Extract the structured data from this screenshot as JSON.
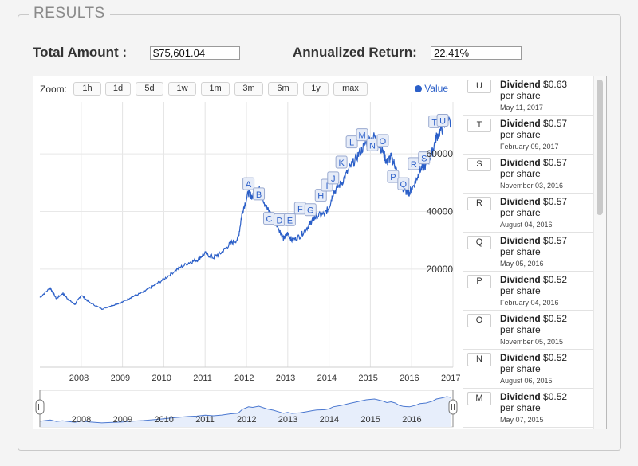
{
  "results": {
    "title": "RESULTS",
    "total_amount_label": "Total Amount :",
    "total_amount_value": "$75,601.04",
    "annualized_return_label": "Annualized Return:",
    "annualized_return_value": "22.41%"
  },
  "zoom": {
    "label": "Zoom:",
    "buttons": [
      "1h",
      "1d",
      "5d",
      "1w",
      "1m",
      "3m",
      "6m",
      "1y",
      "max"
    ]
  },
  "legend": {
    "label": "Value",
    "color": "#2b5fc8"
  },
  "chart_data": {
    "type": "line",
    "x_start": 2007.0,
    "x_end": 2017.0,
    "x_tick_labels": [
      "2008",
      "2009",
      "2010",
      "2011",
      "2012",
      "2013",
      "2014",
      "2015",
      "2016",
      "2017"
    ],
    "y_tick_labels": [
      "20000",
      "40000",
      "60000"
    ],
    "ylim": [
      -14000,
      78000
    ],
    "series": [
      {
        "points": [
          [
            2007.0,
            10200
          ],
          [
            2007.25,
            13500
          ],
          [
            2007.4,
            9800
          ],
          [
            2007.55,
            11600
          ],
          [
            2007.7,
            9400
          ],
          [
            2007.85,
            7800
          ],
          [
            2008.0,
            11000
          ],
          [
            2008.2,
            8500
          ],
          [
            2008.5,
            6200
          ],
          [
            2008.7,
            7200
          ],
          [
            2009.0,
            8600
          ],
          [
            2009.2,
            10200
          ],
          [
            2009.5,
            12000
          ],
          [
            2009.7,
            13800
          ],
          [
            2010.0,
            16500
          ],
          [
            2010.3,
            19800
          ],
          [
            2010.6,
            22200
          ],
          [
            2010.8,
            23200
          ],
          [
            2011.0,
            25500
          ],
          [
            2011.2,
            24000
          ],
          [
            2011.4,
            25800
          ],
          [
            2011.6,
            28800
          ],
          [
            2011.8,
            30500
          ],
          [
            2011.9,
            40000
          ],
          [
            2012.05,
            46500
          ],
          [
            2012.15,
            45000
          ],
          [
            2012.3,
            48000
          ],
          [
            2012.5,
            41000
          ],
          [
            2012.65,
            38000
          ],
          [
            2012.8,
            33500
          ],
          [
            2012.9,
            30500
          ],
          [
            2013.0,
            32500
          ],
          [
            2013.1,
            30000
          ],
          [
            2013.3,
            31500
          ],
          [
            2013.5,
            35000
          ],
          [
            2013.6,
            37000
          ],
          [
            2013.7,
            38500
          ],
          [
            2013.9,
            39200
          ],
          [
            2014.0,
            41500
          ],
          [
            2014.1,
            46500
          ],
          [
            2014.3,
            50000
          ],
          [
            2014.5,
            55000
          ],
          [
            2014.7,
            59500
          ],
          [
            2014.9,
            64000
          ],
          [
            2015.1,
            66000
          ],
          [
            2015.3,
            61000
          ],
          [
            2015.4,
            57000
          ],
          [
            2015.5,
            59000
          ],
          [
            2015.6,
            56000
          ],
          [
            2015.7,
            50000
          ],
          [
            2015.8,
            47500
          ],
          [
            2015.95,
            46500
          ],
          [
            2016.1,
            50500
          ],
          [
            2016.2,
            54500
          ],
          [
            2016.35,
            56000
          ],
          [
            2016.5,
            60500
          ],
          [
            2016.6,
            66000
          ],
          [
            2016.75,
            69000
          ],
          [
            2016.85,
            72000
          ],
          [
            2016.95,
            70000
          ]
        ]
      }
    ],
    "markers": [
      {
        "label": "A",
        "x": 2012.05,
        "y": 49500
      },
      {
        "label": "B",
        "x": 2012.3,
        "y": 46000
      },
      {
        "label": "C",
        "x": 2012.55,
        "y": 37500
      },
      {
        "label": "D",
        "x": 2012.8,
        "y": 37000
      },
      {
        "label": "E",
        "x": 2013.05,
        "y": 37000
      },
      {
        "label": "F",
        "x": 2013.3,
        "y": 41000
      },
      {
        "label": "G",
        "x": 2013.55,
        "y": 40500
      },
      {
        "label": "H",
        "x": 2013.8,
        "y": 45500
      },
      {
        "label": "I",
        "x": 2013.95,
        "y": 49000
      },
      {
        "label": "J",
        "x": 2014.1,
        "y": 51500
      },
      {
        "label": "K",
        "x": 2014.3,
        "y": 57000
      },
      {
        "label": "L",
        "x": 2014.55,
        "y": 64000
      },
      {
        "label": "M",
        "x": 2014.8,
        "y": 66500
      },
      {
        "label": "N",
        "x": 2015.05,
        "y": 63000
      },
      {
        "label": "O",
        "x": 2015.3,
        "y": 64500
      },
      {
        "label": "P",
        "x": 2015.55,
        "y": 52000
      },
      {
        "label": "Q",
        "x": 2015.8,
        "y": 49500
      },
      {
        "label": "R",
        "x": 2016.05,
        "y": 56500
      },
      {
        "label": "S",
        "x": 2016.3,
        "y": 58500
      },
      {
        "label": "T",
        "x": 2016.55,
        "y": 71000
      },
      {
        "label": "U",
        "x": 2016.75,
        "y": 71500
      }
    ]
  },
  "dividends": [
    {
      "letter": "U",
      "label": "Dividend",
      "amount": "$0.63",
      "unit": "per share",
      "date": "May 11, 2017"
    },
    {
      "letter": "T",
      "label": "Dividend",
      "amount": "$0.57",
      "unit": "per share",
      "date": "February 09, 2017"
    },
    {
      "letter": "S",
      "label": "Dividend",
      "amount": "$0.57",
      "unit": "per share",
      "date": "November 03, 2016"
    },
    {
      "letter": "R",
      "label": "Dividend",
      "amount": "$0.57",
      "unit": "per share",
      "date": "August 04, 2016"
    },
    {
      "letter": "Q",
      "label": "Dividend",
      "amount": "$0.57",
      "unit": "per share",
      "date": "May 05, 2016"
    },
    {
      "letter": "P",
      "label": "Dividend",
      "amount": "$0.52",
      "unit": "per share",
      "date": "February 04, 2016"
    },
    {
      "letter": "O",
      "label": "Dividend",
      "amount": "$0.52",
      "unit": "per share",
      "date": "November 05, 2015"
    },
    {
      "letter": "N",
      "label": "Dividend",
      "amount": "$0.52",
      "unit": "per share",
      "date": "August 06, 2015"
    },
    {
      "letter": "M",
      "label": "Dividend",
      "amount": "$0.52",
      "unit": "per share",
      "date": "May 07, 2015"
    }
  ]
}
